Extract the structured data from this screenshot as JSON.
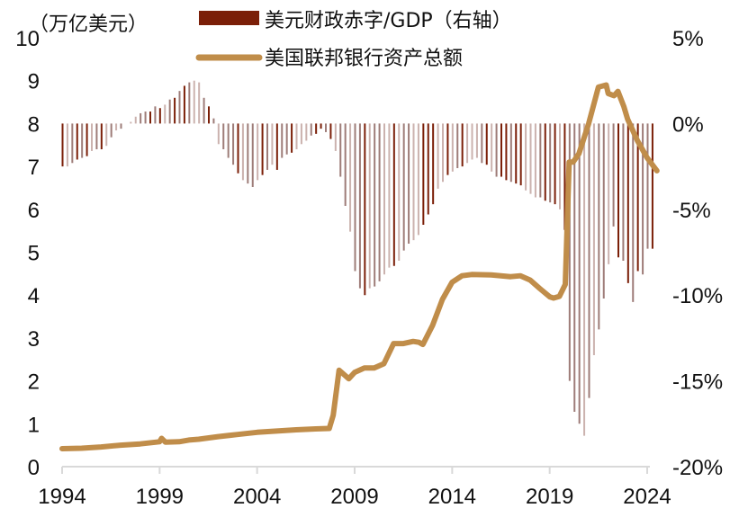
{
  "chart_data": {
    "type": "bar+line",
    "title": "",
    "left_axis": {
      "label": "（万亿美元）",
      "range": [
        0,
        10
      ],
      "ticks": [
        "0",
        "1",
        "2",
        "3",
        "4",
        "5",
        "6",
        "7",
        "8",
        "9",
        "10"
      ]
    },
    "right_axis": {
      "range": [
        -20,
        5
      ],
      "ticks": [
        "5%",
        "0%",
        "-5%",
        "-10%",
        "-15%",
        "-20%"
      ],
      "tick_values": [
        5,
        0,
        -5,
        -10,
        -15,
        -20
      ]
    },
    "x_axis": {
      "range": [
        1994,
        2024.6
      ],
      "ticks": [
        "1994",
        "1999",
        "2004",
        "2009",
        "2014",
        "2019",
        "2024"
      ],
      "tick_values": [
        1994,
        1999,
        2004,
        2009,
        2014,
        2019,
        2024
      ]
    },
    "legend": {
      "placement": "top-center",
      "items": [
        {
          "label": "美元财政赤字/GDP（右轴）",
          "type": "bar",
          "color": "#7b1f08"
        },
        {
          "label": "美国联邦银行资产总额",
          "type": "line",
          "color": "#c08d4a"
        }
      ]
    },
    "series": [
      {
        "name": "美元财政赤字/GDP（右轴）",
        "axis": "right",
        "type": "bar",
        "color": "#7b1f08",
        "x": [
          1994.0,
          1994.25,
          1994.5,
          1994.75,
          1995.0,
          1995.25,
          1995.5,
          1995.75,
          1996.0,
          1996.25,
          1996.5,
          1996.75,
          1997.0,
          1997.25,
          1997.5,
          1997.75,
          1998.0,
          1998.25,
          1998.5,
          1998.75,
          1999.0,
          1999.25,
          1999.5,
          1999.75,
          2000.0,
          2000.25,
          2000.5,
          2000.75,
          2001.0,
          2001.25,
          2001.5,
          2001.75,
          2002.0,
          2002.25,
          2002.5,
          2002.75,
          2003.0,
          2003.25,
          2003.5,
          2003.75,
          2004.0,
          2004.25,
          2004.5,
          2004.75,
          2005.0,
          2005.25,
          2005.5,
          2005.75,
          2006.0,
          2006.25,
          2006.5,
          2006.75,
          2007.0,
          2007.25,
          2007.5,
          2007.75,
          2008.0,
          2008.25,
          2008.5,
          2008.75,
          2009.0,
          2009.25,
          2009.5,
          2009.75,
          2010.0,
          2010.25,
          2010.5,
          2010.75,
          2011.0,
          2011.25,
          2011.5,
          2011.75,
          2012.0,
          2012.25,
          2012.5,
          2012.75,
          2013.0,
          2013.25,
          2013.5,
          2013.75,
          2014.0,
          2014.25,
          2014.5,
          2014.75,
          2015.0,
          2015.25,
          2015.5,
          2015.75,
          2016.0,
          2016.25,
          2016.5,
          2016.75,
          2017.0,
          2017.25,
          2017.5,
          2017.75,
          2018.0,
          2018.25,
          2018.5,
          2018.75,
          2019.0,
          2019.25,
          2019.5,
          2019.75,
          2020.0,
          2020.25,
          2020.5,
          2020.75,
          2021.0,
          2021.25,
          2021.5,
          2021.75,
          2022.0,
          2022.25,
          2022.5,
          2022.75,
          2023.0,
          2023.25,
          2023.5,
          2023.75,
          2024.0,
          2024.25
        ],
        "values": [
          -2.5,
          -2.5,
          -2.3,
          -2.1,
          -2.0,
          -1.9,
          -1.6,
          -1.5,
          -1.5,
          -1.3,
          -0.8,
          -0.4,
          -0.3,
          0.0,
          0.1,
          0.4,
          0.6,
          0.7,
          0.7,
          1.0,
          0.9,
          1.1,
          1.4,
          1.5,
          1.9,
          2.2,
          2.4,
          2.5,
          2.4,
          1.5,
          1.0,
          0.3,
          -1.2,
          -1.5,
          -2.0,
          -2.4,
          -2.9,
          -3.3,
          -3.5,
          -3.7,
          -3.3,
          -3.0,
          -2.7,
          -2.4,
          -2.7,
          -2.0,
          -1.8,
          -1.7,
          -1.5,
          -1.2,
          -1.0,
          -0.7,
          -0.6,
          -0.3,
          -0.5,
          -0.9,
          -1.6,
          -3.1,
          -4.8,
          -6.3,
          -8.6,
          -9.6,
          -10.0,
          -9.6,
          -9.5,
          -9.2,
          -8.8,
          -8.4,
          -8.3,
          -8.0,
          -7.4,
          -7.0,
          -6.8,
          -6.5,
          -5.9,
          -5.3,
          -4.7,
          -3.8,
          -3.4,
          -3.0,
          -2.8,
          -2.6,
          -2.5,
          -2.3,
          -2.1,
          -2.0,
          -2.3,
          -2.4,
          -2.8,
          -3.1,
          -3.1,
          -3.3,
          -3.4,
          -3.5,
          -3.6,
          -3.9,
          -4.1,
          -4.3,
          -4.3,
          -4.5,
          -4.6,
          -4.7,
          -5.0,
          -6.2,
          -15.0,
          -16.8,
          -17.5,
          -18.2,
          -16.0,
          -13.5,
          -12.0,
          -10.2,
          -8.2,
          -6.0,
          -7.8,
          -8.0,
          -9.3,
          -10.4,
          -8.6,
          -8.8,
          -7.3,
          -7.3
        ],
        "shades": [
          "dark",
          "light",
          "mid",
          "dark",
          "mid",
          "dark",
          "light",
          "mid",
          "dark",
          "light",
          "mid",
          "light",
          "mid",
          "light",
          "light",
          "light",
          "mid",
          "mid",
          "dark",
          "mid",
          "dark",
          "light",
          "mid",
          "dark",
          "mid",
          "dark",
          "mid",
          "light",
          "light",
          "mid",
          "dark",
          "mid",
          "light",
          "mid",
          "mid",
          "mid",
          "dark",
          "light",
          "mid",
          "mid",
          "light",
          "dark",
          "mid",
          "light",
          "dark",
          "mid",
          "mid",
          "dark",
          "light",
          "light",
          "light",
          "mid",
          "dark",
          "dark",
          "mid",
          "dark",
          "light",
          "mid",
          "mid",
          "light",
          "mid",
          "mid",
          "dark",
          "light",
          "mid",
          "mid",
          "light",
          "light",
          "dark",
          "light",
          "mid",
          "mid",
          "light",
          "light",
          "dark",
          "dark",
          "dark",
          "light",
          "light",
          "dark",
          "light",
          "mid",
          "dark",
          "light",
          "light",
          "light",
          "mid",
          "dark",
          "light",
          "mid",
          "dark",
          "dark",
          "mid",
          "dark",
          "dark",
          "light",
          "light",
          "light",
          "mid",
          "dark",
          "mid",
          "dark",
          "light",
          "dark",
          "mid",
          "mid",
          "mid",
          "light",
          "mid",
          "light",
          "mid",
          "mid",
          "light",
          "mid",
          "dark",
          "mid",
          "dark",
          "mid",
          "dark",
          "mid",
          "mid",
          "dark",
          "light",
          "dark",
          "light"
        ]
      },
      {
        "name": "美国联邦银行资产总额",
        "axis": "left",
        "type": "line",
        "color": "#c08d4a",
        "x": [
          1994.0,
          1995.0,
          1996.0,
          1997.0,
          1998.0,
          1999.0,
          1999.1,
          1999.3,
          2000.0,
          2000.5,
          2001.0,
          2002.0,
          2003.0,
          2004.0,
          2005.0,
          2006.0,
          2007.0,
          2007.7,
          2007.9,
          2008.2,
          2008.7,
          2009.0,
          2009.5,
          2010.0,
          2010.5,
          2011.0,
          2011.5,
          2012.0,
          2012.3,
          2012.5,
          2013.0,
          2013.5,
          2014.0,
          2014.5,
          2015.0,
          2016.0,
          2017.0,
          2017.5,
          2018.0,
          2018.5,
          2019.0,
          2019.2,
          2019.5,
          2019.8,
          2020.0,
          2020.2,
          2020.5,
          2021.0,
          2021.5,
          2021.9,
          2022.0,
          2022.3,
          2022.5,
          2022.8,
          2023.0,
          2023.5,
          2024.0,
          2024.5
        ],
        "values": [
          0.42,
          0.43,
          0.46,
          0.5,
          0.53,
          0.58,
          0.66,
          0.57,
          0.58,
          0.62,
          0.64,
          0.7,
          0.75,
          0.8,
          0.83,
          0.86,
          0.88,
          0.89,
          1.2,
          2.25,
          2.05,
          2.2,
          2.3,
          2.3,
          2.4,
          2.87,
          2.87,
          2.92,
          2.9,
          2.85,
          3.3,
          3.9,
          4.3,
          4.45,
          4.48,
          4.47,
          4.43,
          4.45,
          4.35,
          4.15,
          3.96,
          3.93,
          3.97,
          4.25,
          7.1,
          7.1,
          7.3,
          8.0,
          8.85,
          8.9,
          8.7,
          8.65,
          8.75,
          8.4,
          8.1,
          7.6,
          7.2,
          6.9
        ]
      }
    ],
    "colors": {
      "bar_dark": "#7b1f08",
      "bar_mid": "#9e7c78",
      "bar_light": "#cbb2ae",
      "line": "#c08d4a",
      "axis": "#d9d9d9",
      "text": "#111111"
    }
  }
}
